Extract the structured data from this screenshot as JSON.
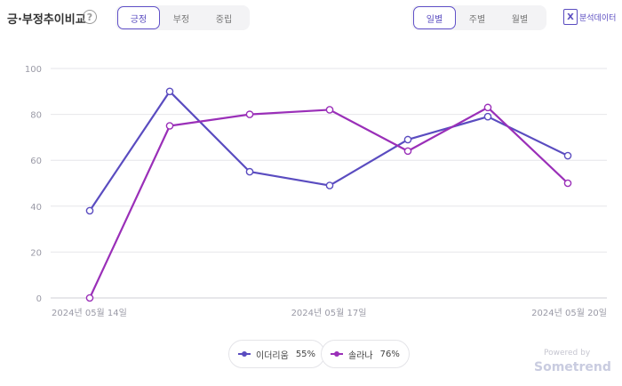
{
  "header": {
    "title": "긍·부정추이비교",
    "help_icon": "?",
    "sentiment_tabs": [
      "긍정",
      "부정",
      "중립"
    ],
    "sentiment_active": 0,
    "period_tabs": [
      "일별",
      "주별",
      "월별"
    ],
    "period_active": 0,
    "export_icon": "X",
    "export_label": "분석데이터"
  },
  "chart_data": {
    "type": "line",
    "x": [
      "2024년 05월 14일",
      "2024년 05월 15일",
      "2024년 05월 16일",
      "2024년 05월 17일",
      "2024년 05월 18일",
      "2024년 05월 19일",
      "2024년 05월 20일"
    ],
    "xticks": [
      "2024년 05월 14일",
      "2024년 05월 17일",
      "2024년 05월 20일"
    ],
    "ylim": [
      0,
      100
    ],
    "yticks": [
      "0",
      "20",
      "40",
      "60",
      "80",
      "100"
    ],
    "grid": true,
    "series": [
      {
        "name": "이더리움",
        "color": "#5a4cc0",
        "values": [
          38,
          90,
          55,
          49,
          69,
          79,
          62
        ]
      },
      {
        "name": "솔라나",
        "color": "#9a2fb8",
        "values": [
          0,
          75,
          80,
          82,
          64,
          83,
          50
        ]
      }
    ]
  },
  "legend": [
    {
      "label": "이더리움",
      "pct": "55%",
      "color": "#5a4cc0"
    },
    {
      "label": "솔라나",
      "pct": "76%",
      "color": "#9a2fb8"
    }
  ],
  "footer": {
    "powered": "Powered by",
    "brand": "Sometrend"
  }
}
